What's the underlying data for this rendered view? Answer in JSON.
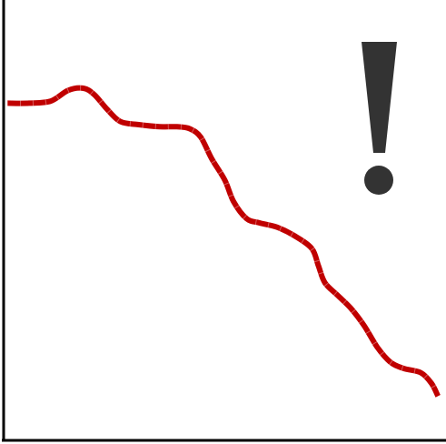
{
  "chart_data": {
    "type": "line",
    "title": "",
    "xlabel": "",
    "ylabel": "",
    "grid": false,
    "ticks": false,
    "xlim": [
      0,
      100
    ],
    "ylim": [
      0,
      100
    ],
    "series": [
      {
        "color": "#c00000",
        "points": [
          [
            0,
            78
          ],
          [
            5,
            78
          ],
          [
            10,
            78.5
          ],
          [
            14,
            81
          ],
          [
            17.5,
            81.5
          ],
          [
            20,
            80
          ],
          [
            23,
            76.5
          ],
          [
            26,
            73.7
          ],
          [
            30,
            73
          ],
          [
            35,
            72.5
          ],
          [
            39,
            72.5
          ],
          [
            42,
            72
          ],
          [
            44.5,
            70
          ],
          [
            47,
            65
          ],
          [
            50,
            60
          ],
          [
            52,
            55
          ],
          [
            55,
            51
          ],
          [
            58,
            50
          ],
          [
            62,
            49
          ],
          [
            66,
            47
          ],
          [
            70,
            44
          ],
          [
            71.5,
            40
          ],
          [
            73,
            36
          ],
          [
            76,
            33
          ],
          [
            79,
            30
          ],
          [
            82,
            26
          ],
          [
            85,
            21
          ],
          [
            88,
            17.5
          ],
          [
            91,
            16
          ],
          [
            95,
            15
          ],
          [
            97.5,
            12.5
          ],
          [
            99,
            9.5
          ]
        ]
      }
    ],
    "annotation": {
      "symbol": "exclamation-mark",
      "color": "#333333"
    }
  }
}
